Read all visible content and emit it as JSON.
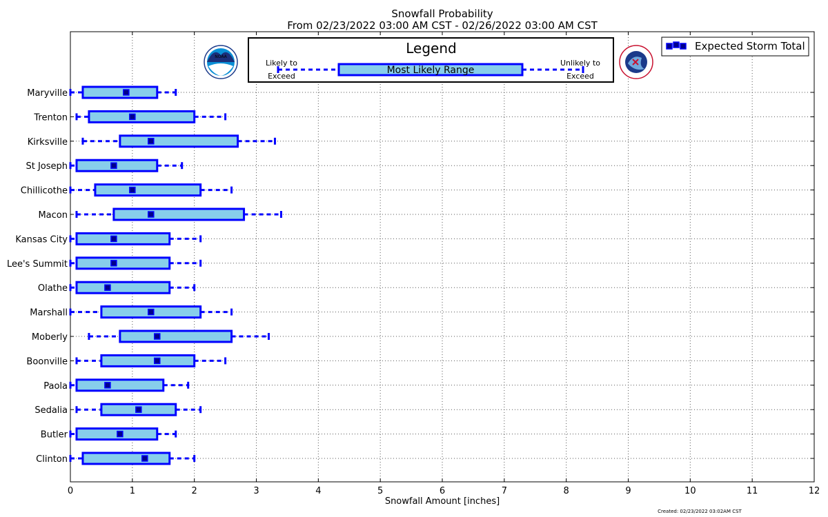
{
  "chart_data": {
    "type": "boxplot-horizontal",
    "title": "Snowfall Probability",
    "subtitle": "From 02/23/2022 03:00 AM CST - 02/26/2022 03:00 AM CST",
    "xlabel": "Snowfall Amount [inches]",
    "ylabel": "",
    "xlim": [
      0,
      12
    ],
    "xticks": [
      "0",
      "1",
      "2",
      "3",
      "4",
      "5",
      "6",
      "7",
      "8",
      "9",
      "10",
      "11",
      "12"
    ],
    "grid": true,
    "legend_placement": "top-right",
    "legend_entry": "Expected Storm Total",
    "legend_box": {
      "title": "Legend",
      "left_label": [
        "Likely to",
        "Exceed"
      ],
      "center_label": "Most Likely Range",
      "right_label": [
        "Unlikely to",
        "Exceed"
      ]
    },
    "stations": [
      {
        "name": "Maryville",
        "low": 0.0,
        "q1": 0.2,
        "expected": 0.9,
        "q3": 1.4,
        "high": 1.7
      },
      {
        "name": "Trenton",
        "low": 0.1,
        "q1": 0.3,
        "expected": 1.0,
        "q3": 2.0,
        "high": 2.5
      },
      {
        "name": "Kirksville",
        "low": 0.2,
        "q1": 0.8,
        "expected": 1.3,
        "q3": 2.7,
        "high": 3.3
      },
      {
        "name": "St Joseph",
        "low": 0.0,
        "q1": 0.1,
        "expected": 0.7,
        "q3": 1.4,
        "high": 1.8
      },
      {
        "name": "Chillicothe",
        "low": 0.0,
        "q1": 0.4,
        "expected": 1.0,
        "q3": 2.1,
        "high": 2.6
      },
      {
        "name": "Macon",
        "low": 0.1,
        "q1": 0.7,
        "expected": 1.3,
        "q3": 2.8,
        "high": 3.4
      },
      {
        "name": "Kansas City",
        "low": 0.0,
        "q1": 0.1,
        "expected": 0.7,
        "q3": 1.6,
        "high": 2.1
      },
      {
        "name": "Lee's Summit",
        "low": 0.0,
        "q1": 0.1,
        "expected": 0.7,
        "q3": 1.6,
        "high": 2.1
      },
      {
        "name": "Olathe",
        "low": 0.0,
        "q1": 0.1,
        "expected": 0.6,
        "q3": 1.6,
        "high": 2.0
      },
      {
        "name": "Marshall",
        "low": 0.0,
        "q1": 0.5,
        "expected": 1.3,
        "q3": 2.1,
        "high": 2.6
      },
      {
        "name": "Moberly",
        "low": 0.3,
        "q1": 0.8,
        "expected": 1.4,
        "q3": 2.6,
        "high": 3.2
      },
      {
        "name": "Boonville",
        "low": 0.1,
        "q1": 0.5,
        "expected": 1.4,
        "q3": 2.0,
        "high": 2.5
      },
      {
        "name": "Paola",
        "low": 0.0,
        "q1": 0.1,
        "expected": 0.6,
        "q3": 1.5,
        "high": 1.9
      },
      {
        "name": "Sedalia",
        "low": 0.1,
        "q1": 0.5,
        "expected": 1.1,
        "q3": 1.7,
        "high": 2.1
      },
      {
        "name": "Butler",
        "low": 0.0,
        "q1": 0.1,
        "expected": 0.8,
        "q3": 1.4,
        "high": 1.7
      },
      {
        "name": "Clinton",
        "low": 0.0,
        "q1": 0.2,
        "expected": 1.2,
        "q3": 1.6,
        "high": 2.0
      }
    ],
    "footer": "Created: 02/23/2022 03:02AM CST"
  },
  "colors": {
    "box_fill": "#87ceeb",
    "box_stroke": "#0000ff",
    "marker_fill": "#00008b",
    "grid": "#555555"
  },
  "logos": {
    "noaa_text": "NOAA",
    "nws_text": "NATIONAL WEATHER SERVICE"
  }
}
